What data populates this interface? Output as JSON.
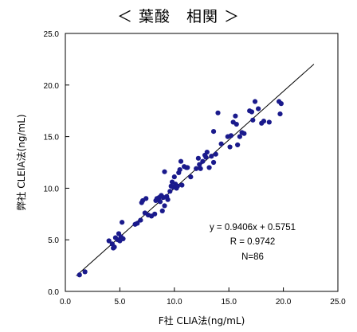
{
  "title": "＜ 葉酸　相関 ＞",
  "chart_data": {
    "type": "scatter",
    "title": "＜ 葉酸　相関 ＞",
    "xlabel": "F社 CLIA法(ng/mL)",
    "ylabel": "弊社 CLEIA法(ng/mL)",
    "xlim": [
      0,
      25
    ],
    "ylim": [
      0,
      25
    ],
    "x_ticks": [
      "0.0",
      "5.0",
      "10.0",
      "15.0",
      "20.0",
      "25.0"
    ],
    "y_ticks": [
      "0.0",
      "5.0",
      "10.0",
      "15.0",
      "20.0",
      "25.0"
    ],
    "grid": false,
    "marker_color": "#1a1a8c",
    "regression": {
      "slope": 0.9406,
      "intercept": 0.5751,
      "x_range": [
        1.0,
        22.8
      ]
    },
    "annotations": [
      "y = 0.9406x + 0.5751",
      "R = 0.9742",
      "N=86"
    ],
    "points": [
      [
        1.3,
        1.6
      ],
      [
        1.8,
        1.9
      ],
      [
        4.0,
        4.9
      ],
      [
        4.3,
        4.6
      ],
      [
        4.4,
        4.2
      ],
      [
        4.5,
        4.3
      ],
      [
        4.6,
        5.2
      ],
      [
        4.8,
        5.0
      ],
      [
        4.9,
        5.6
      ],
      [
        5.0,
        4.9
      ],
      [
        5.1,
        5.3
      ],
      [
        5.3,
        5.1
      ],
      [
        5.2,
        6.7
      ],
      [
        6.4,
        6.5
      ],
      [
        6.6,
        6.6
      ],
      [
        6.9,
        6.9
      ],
      [
        7.0,
        8.6
      ],
      [
        7.1,
        8.8
      ],
      [
        7.3,
        7.6
      ],
      [
        7.4,
        9.0
      ],
      [
        7.6,
        7.4
      ],
      [
        7.9,
        7.3
      ],
      [
        8.2,
        7.5
      ],
      [
        8.3,
        8.8
      ],
      [
        8.4,
        9.0
      ],
      [
        8.6,
        9.1
      ],
      [
        8.7,
        8.7
      ],
      [
        8.8,
        9.3
      ],
      [
        8.9,
        7.8
      ],
      [
        9.0,
        9.1
      ],
      [
        9.1,
        8.3
      ],
      [
        9.3,
        9.2
      ],
      [
        9.4,
        8.9
      ],
      [
        9.1,
        11.6
      ],
      [
        9.6,
        9.7
      ],
      [
        9.7,
        10.2
      ],
      [
        9.8,
        10.6
      ],
      [
        9.9,
        10.1
      ],
      [
        10.0,
        11.1
      ],
      [
        10.1,
        10.4
      ],
      [
        10.2,
        10.0
      ],
      [
        10.3,
        10.2
      ],
      [
        10.4,
        11.5
      ],
      [
        10.5,
        11.8
      ],
      [
        10.6,
        12.6
      ],
      [
        10.7,
        10.3
      ],
      [
        10.9,
        12.1
      ],
      [
        11.1,
        12.0
      ],
      [
        11.2,
        12.0
      ],
      [
        11.5,
        11.1
      ],
      [
        12.0,
        11.9
      ],
      [
        12.2,
        12.9
      ],
      [
        12.3,
        12.3
      ],
      [
        12.4,
        11.9
      ],
      [
        12.6,
        12.6
      ],
      [
        12.8,
        13.2
      ],
      [
        12.9,
        13.0
      ],
      [
        13.0,
        13.5
      ],
      [
        13.2,
        12.0
      ],
      [
        13.4,
        13.1
      ],
      [
        13.6,
        12.5
      ],
      [
        13.8,
        13.3
      ],
      [
        13.6,
        15.5
      ],
      [
        14.0,
        17.3
      ],
      [
        14.3,
        14.3
      ],
      [
        14.9,
        15.0
      ],
      [
        15.2,
        15.1
      ],
      [
        15.1,
        14.0
      ],
      [
        15.4,
        16.4
      ],
      [
        15.6,
        17.0
      ],
      [
        15.7,
        16.2
      ],
      [
        15.8,
        14.2
      ],
      [
        16.0,
        15.0
      ],
      [
        16.2,
        15.4
      ],
      [
        16.4,
        15.3
      ],
      [
        16.9,
        17.5
      ],
      [
        17.1,
        17.4
      ],
      [
        17.2,
        16.6
      ],
      [
        17.4,
        18.4
      ],
      [
        17.7,
        17.7
      ],
      [
        18.0,
        16.3
      ],
      [
        18.2,
        16.5
      ],
      [
        18.7,
        16.4
      ],
      [
        19.6,
        18.4
      ],
      [
        19.7,
        17.2
      ],
      [
        19.8,
        18.2
      ]
    ]
  }
}
